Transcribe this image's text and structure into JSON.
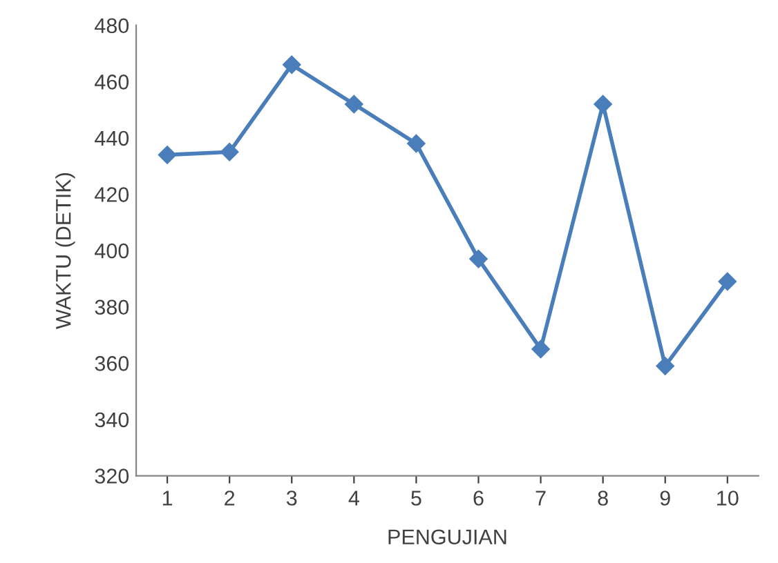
{
  "chart_data": {
    "type": "line",
    "xlabel": "PENGUJIAN",
    "ylabel": "WAKTU (DETIK)",
    "categories": [
      "1",
      "2",
      "3",
      "4",
      "5",
      "6",
      "7",
      "8",
      "9",
      "10"
    ],
    "series": [
      {
        "color": "#4a7ebb",
        "values": [
          434,
          435,
          466,
          452,
          438,
          397,
          365,
          452,
          359,
          389
        ]
      }
    ],
    "ylim": [
      320,
      480
    ],
    "yticks": [
      320,
      340,
      360,
      380,
      400,
      420,
      440,
      460,
      480
    ],
    "grid": false,
    "legend": false,
    "marker": "diamond",
    "line_style": "solid"
  }
}
